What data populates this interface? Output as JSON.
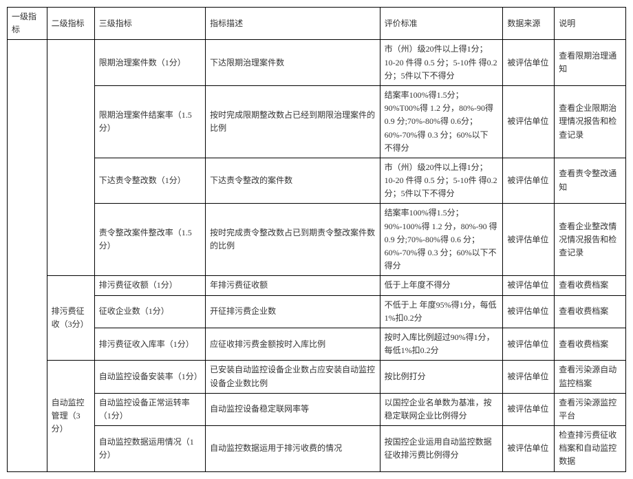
{
  "headers": {
    "c1": "一级指标",
    "c2": "二级指标",
    "c3": "三级指标",
    "c4": "指标描述",
    "c5": "评价标准",
    "c6": "数据来源",
    "c7": "说明"
  },
  "groups": {
    "g1": {
      "level2": ""
    },
    "g2": {
      "level2": "排污费征收（3分）"
    },
    "g3": {
      "level2": "自动监控管理（3分）"
    }
  },
  "rows": {
    "r1": {
      "c3": "限期治理案件数（1分）",
      "c4": "下达限期治理案件数",
      "c5": "市（州）级20件以上得1分；10-20 件得 0.5 分；5-10件 得0.2分；5件以下不得分",
      "c6": "被评估单位",
      "c7": "查看限期治理通知"
    },
    "r2": {
      "c3": "限期治理案件结案率（1.5分）",
      "c4": "按时完成限期整改数占已经到期限治理案件的比例",
      "c5": "结案率100%得1.5分；90%T00%得 1.2 分，80%-90得 0.9 分;70%-80%得 0.6分； 60%-70%得 0.3 分；60%以下 不得分",
      "c6": "被评估单位",
      "c7": "查看企业限期治理情况报告和检查记录"
    },
    "r3": {
      "c3": "下达责令整改数（1分）",
      "c4": "下达责令整改的案件数",
      "c5": "市（州）级20件以上得1分；10-20 件得 0.5 分；5-10件 得0.2分；5件以下不得分",
      "c6": "被评估单位",
      "c7": "查看责令整改通知"
    },
    "r4": {
      "c3": "责令整改案件整改率（1.5分）",
      "c4": "按时完成责令整改数占已到期责令整改案件数的比例",
      "c5": "结案率100%得1.5分； 90%-100%得 1.2 分，80%-90 得0.9 分;70%-80%得 0.6 分；60%-70%得 0.3 分；60%以下不得分",
      "c6": "被评估单位",
      "c7": "查看企业整改情况情况报告和检查记录"
    },
    "r5": {
      "c3": "排污费征收额（1分）",
      "c4": "年排污费征收额",
      "c5": "低于上年度不得分",
      "c6": "被评估单位",
      "c7": "查看收费档案"
    },
    "r6": {
      "c3": "征收企业数（1分）",
      "c4": "开征排污费企业数",
      "c5": "不低于上 年度95%得1分，每低1%扣0.2分",
      "c6": "被评估单位",
      "c7": "查看收费档案"
    },
    "r7": {
      "c3": "排污费征收入库率（1分）",
      "c4": "应征收排污费金额按时入库比例",
      "c5": "按时入库比例超过90%得1分，每低1%扣0.2分",
      "c6": "被评估单位",
      "c7": "查看收费档案"
    },
    "r8": {
      "c3": "自动监控设备安装率（1分）",
      "c4": "已安装自动监控设备企业数占应安装自动监控设备企业数比例",
      "c5": "按比例打分",
      "c6": "被评估单位",
      "c7": "查看污染源自动监控档案"
    },
    "r9": {
      "c3": "自动监控设备正常运转率（1分）",
      "c4": "自动监控设备稳定联网率等",
      "c5": "以国控企业名单数为基准，按稳定联网企业比例得分",
      "c6": "被评估单位",
      "c7": "查看污染源监控平台"
    },
    "r10": {
      "c3": "自动监控数据运用情况（1分）",
      "c4": "自动监控数据运用于排污收费的情况",
      "c5": "按国控企业运用自动监控数据征收排污费比例得分",
      "c6": "被评估单位",
      "c7": "检查排污费征收档案和自动监控数据"
    }
  }
}
